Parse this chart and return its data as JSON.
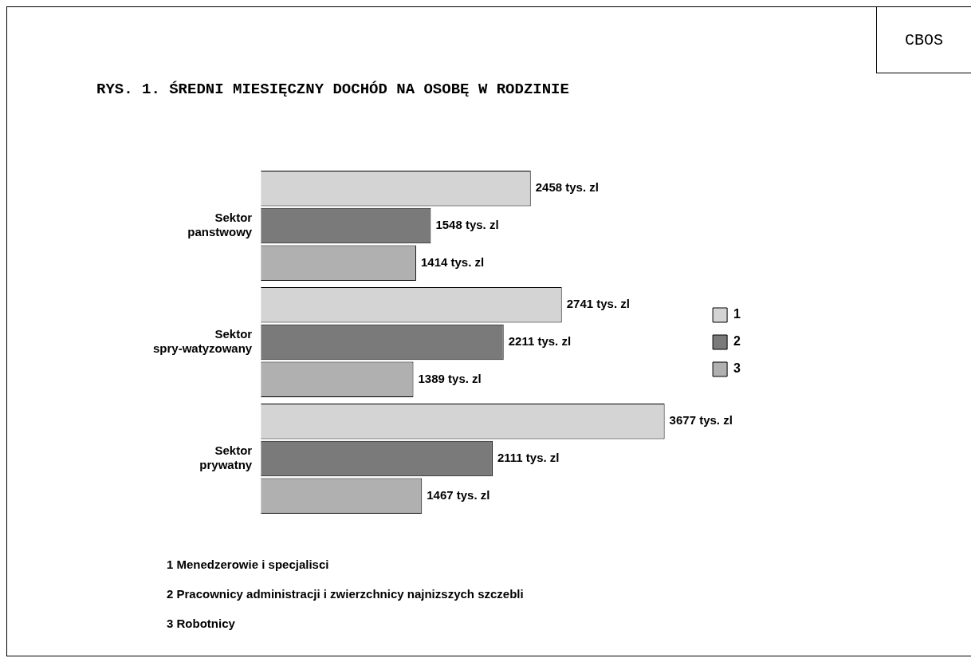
{
  "chart_data": {
    "type": "bar",
    "orientation": "horizontal",
    "title": "RYS. 1. ŚREDNI MIESIĘCZNY DOCHÓD NA OSOBĘ W RODZINIE",
    "categories": [
      "Sektor panstwowy",
      "Sektor spry-watyzowany",
      "Sektor prywatny"
    ],
    "series": [
      {
        "name": "1",
        "color": "#d4d4d4",
        "values": [
          2458,
          2741,
          3677
        ],
        "value_labels": [
          "2458 tys. zl",
          "2741 tys. zl",
          "3677 tys. zl"
        ]
      },
      {
        "name": "2",
        "color": "#7a7a7a",
        "values": [
          1548,
          2211,
          2111
        ],
        "value_labels": [
          "1548 tys. zl",
          "2211 tys. zl",
          "2111 tys. zl"
        ]
      },
      {
        "name": "3",
        "color": "#b0b0b0",
        "values": [
          1414,
          1389,
          1467
        ],
        "value_labels": [
          "1414 tys. zl",
          "1389 tys. zl",
          "1467 tys. zl"
        ]
      }
    ],
    "legend": "right",
    "annotations": [
      "CBOS",
      "1 Menedzerowie i specjalisci",
      "2 Pracownicy administracji i zwierzchnicy najnizszych szczebli",
      "3 Robotnicy"
    ]
  }
}
